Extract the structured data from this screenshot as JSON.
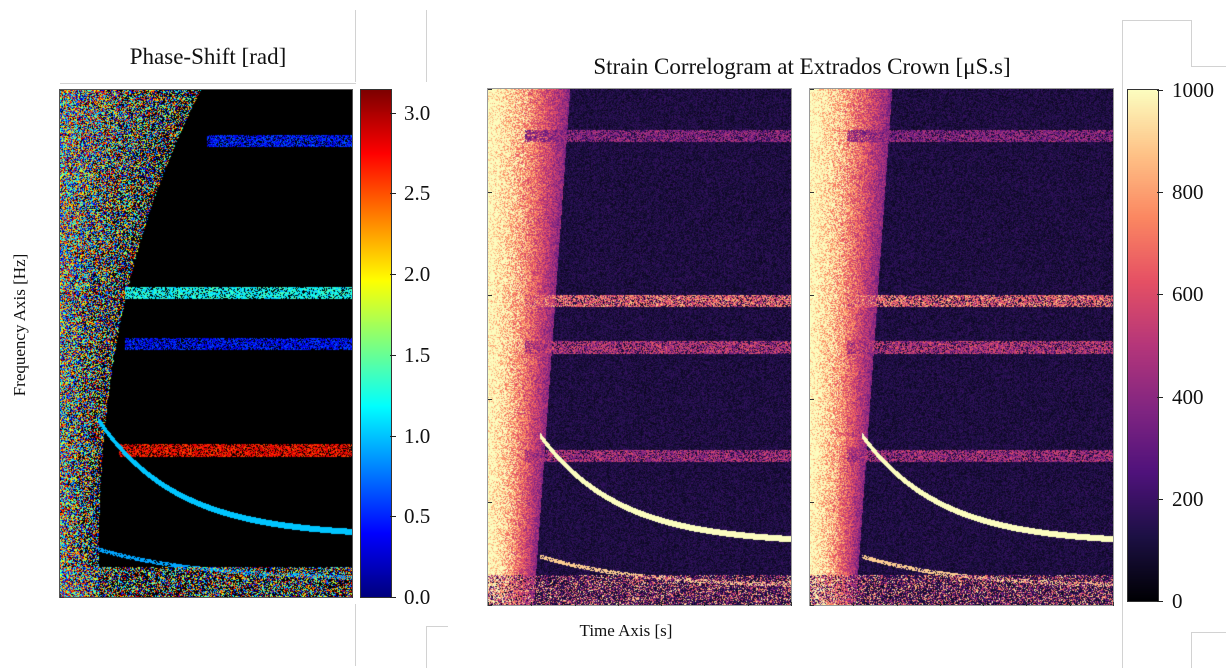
{
  "colors": {
    "jet": [
      "#00007f",
      "#0000ff",
      "#007fff",
      "#00ffff",
      "#7fff7f",
      "#ffff00",
      "#ff7f00",
      "#ff0000",
      "#7f0000"
    ],
    "magma": [
      "#000004",
      "#1c1044",
      "#4f127b",
      "#812581",
      "#b5367a",
      "#e55064",
      "#fb8761",
      "#fec287",
      "#fcfdbf"
    ]
  },
  "chart_data": [
    {
      "type": "heatmap",
      "title": "Phase-Shift [rad]",
      "xlabel": "",
      "ylabel": "Frequency Axis [Hz]",
      "colormap": "jet",
      "colorbar": {
        "range": [
          0,
          3.14
        ],
        "ticks": [
          0.0,
          0.5,
          1.0,
          1.5,
          2.0,
          2.5,
          3.0
        ],
        "tick_labels": [
          "0.0",
          "0.5",
          "1.0",
          "1.5",
          "2.0",
          "2.5",
          "3.0"
        ]
      },
      "x_tick_labels": [],
      "y_tick_labels": [],
      "background_value": 0,
      "bands": [
        {
          "y": 0.9,
          "value": 0.45,
          "x_start": 0.5
        },
        {
          "y": 0.6,
          "value": 1.2,
          "x_start": 0.22
        },
        {
          "y": 0.5,
          "value": 0.4,
          "x_start": 0.22
        },
        {
          "y": 0.29,
          "value": 2.75,
          "x_start": 0.2
        }
      ],
      "chirp": {
        "value": 1.0,
        "x_start": 0.13,
        "y_start": 0.35,
        "y_end": 0.12
      }
    },
    {
      "type": "heatmap",
      "title": "Strain Correlogram at Extrados Crown [μS.s]",
      "xlabel": "Time Axis [s]",
      "ylabel": "",
      "colormap": "magma",
      "colorbar": {
        "range": [
          0,
          1000
        ],
        "ticks": [
          0,
          200,
          400,
          600,
          800,
          1000
        ],
        "tick_labels": [
          "0",
          "200",
          "400",
          "600",
          "800",
          "1000"
        ]
      },
      "x_tick_labels": [],
      "y_tick_labels": [],
      "panels": 2,
      "background_value": 120,
      "bands": [
        {
          "y": 0.91,
          "value": 420
        },
        {
          "y": 0.59,
          "value": 700
        },
        {
          "y": 0.5,
          "value": 520
        },
        {
          "y": 0.29,
          "value": 480
        }
      ],
      "chirp": {
        "value": 1000,
        "x_start": 0.17,
        "y_start": 0.33,
        "y_end": 0.12
      }
    }
  ]
}
